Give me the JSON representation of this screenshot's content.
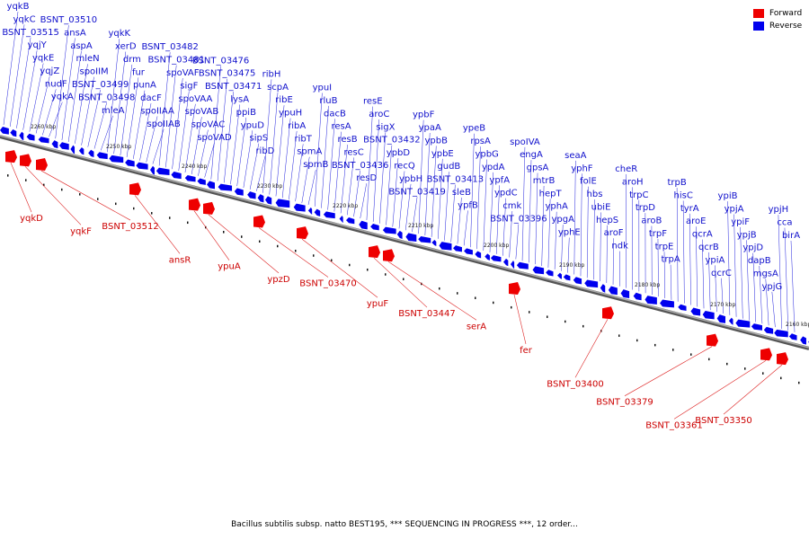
{
  "legend": {
    "forward_label": "Forward",
    "reverse_label": "Reverse",
    "forward_color": "#ee0000",
    "reverse_color": "#0000ee"
  },
  "caption": "Bacillus subtilis subsp. natto BEST195, *** SEQUENCING IN PROGRESS ***, 12 order...",
  "ticks": [
    "2260 kbp",
    "2250 kbp",
    "2240 kbp",
    "2230 kbp",
    "2220 kbp",
    "2210 kbp",
    "2200 kbp",
    "2190 kbp",
    "2180 kbp",
    "2170 kbp",
    "2160 kbp"
  ],
  "reverse_genes": [
    "yqkB",
    "yqkC",
    "BSNT_03515",
    "yqjY",
    "yqkE",
    "yqjZ",
    "nudF",
    "yqkA",
    "BSNT_03510",
    "ansA",
    "aspA",
    "mleN",
    "spoIIM",
    "BSNT_03499",
    "BSNT_03498",
    "mleA",
    "yqkK",
    "xerD",
    "drm",
    "fur",
    "punA",
    "dacF",
    "spoIIAA",
    "spoIIAB",
    "BSNT_03482",
    "BSNT_03481",
    "spoVAF",
    "sigF",
    "spoVAA",
    "spoVAB",
    "spoVAC",
    "spoVAD",
    "BSNT_03476",
    "BSNT_03475",
    "BSNT_03471",
    "lysA",
    "ppiB",
    "ypuD",
    "sipS",
    "ribD",
    "ribH",
    "scpA",
    "ribE",
    "ypuH",
    "ribA",
    "ribT",
    "spmA",
    "spmB",
    "ypuI",
    "rluB",
    "dacB",
    "resA",
    "resB",
    "resC",
    "BSNT_03436",
    "resD",
    "resE",
    "aroC",
    "sigX",
    "BSNT_03432",
    "ypbD",
    "recQ",
    "ypbH",
    "BSNT_03419",
    "ypbF",
    "ypaA",
    "ypbB",
    "ypbE",
    "gudB",
    "BSNT_03413",
    "sleB",
    "ypfB",
    "ypeB",
    "rpsA",
    "ypbG",
    "ypdA",
    "ypfA",
    "ypdC",
    "cmk",
    "BSNT_03396",
    "spoIVA",
    "engA",
    "gpsA",
    "mtrB",
    "hepT",
    "yphA",
    "ypgA",
    "yphE",
    "seaA",
    "yphF",
    "folE",
    "hbs",
    "ubiE",
    "hepS",
    "aroF",
    "ndk",
    "cheR",
    "aroH",
    "trpC",
    "trpD",
    "aroB",
    "trpF",
    "trpE",
    "trpA",
    "trpB",
    "hisC",
    "tyrA",
    "aroE",
    "qcrA",
    "qcrB",
    "ypiA",
    "qcrC",
    "ypiB",
    "ypjA",
    "ypiF",
    "ypjB",
    "ypjD",
    "dapB",
    "mgsA",
    "ypjG",
    "ypjH",
    "cca",
    "birA"
  ],
  "forward_genes": [
    "yqkD",
    "yqkF",
    "BSNT_03512",
    "ansR",
    "ypuA",
    "ypzD",
    "BSNT_03470",
    "ypuF",
    "BSNT_03447",
    "serA",
    "fer",
    "BSNT_03400",
    "BSNT_03379",
    "BSNT_03361",
    "BSNT_03350"
  ]
}
